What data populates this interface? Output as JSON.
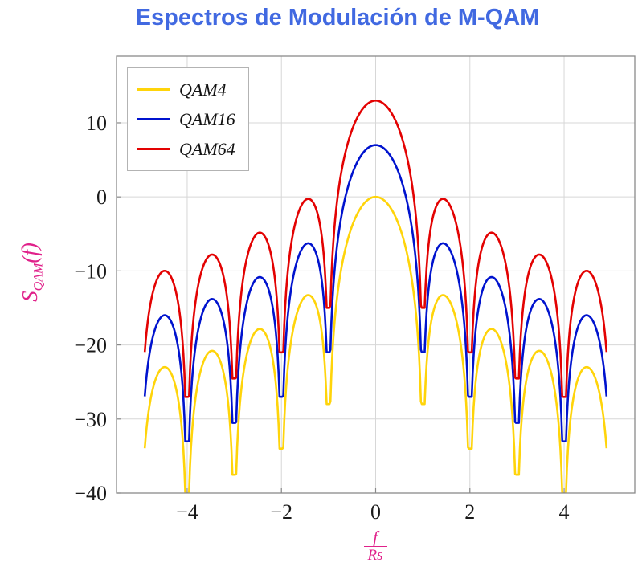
{
  "title": "Espectros de Modulación de M-QAM",
  "labels": {
    "y_main": "S",
    "y_sub": "QAM",
    "y_args": "(f)",
    "x_num": "f",
    "x_den": "Rs"
  },
  "colors": {
    "title": "#4169E1",
    "axis_label": "#E0218A",
    "grid": "#d7d7d7",
    "axis": "#8a8a8a",
    "tick_label": "#1a1a1a"
  },
  "chart_data": {
    "type": "line",
    "title": "Espectros de Modulación de M-QAM",
    "xlabel": "f/Rs",
    "ylabel": "S_QAM(f)",
    "xlim": [
      -5.5,
      5.5
    ],
    "ylim": [
      -40,
      19
    ],
    "x_range": [
      -4.9,
      4.9
    ],
    "x_ticks": [
      {
        "v": -4,
        "label": "−4"
      },
      {
        "v": -2,
        "label": "−2"
      },
      {
        "v": 0,
        "label": "0"
      },
      {
        "v": 2,
        "label": "2"
      },
      {
        "v": 4,
        "label": "4"
      }
    ],
    "y_ticks": [
      {
        "v": -40,
        "label": "−40"
      },
      {
        "v": -30,
        "label": "−30"
      },
      {
        "v": -20,
        "label": "−20"
      },
      {
        "v": -10,
        "label": "−10"
      },
      {
        "v": 0,
        "label": "0"
      },
      {
        "v": 10,
        "label": "10"
      }
    ],
    "formula": "S(f) = peak_db + 20*log10(|sin(pi*f)/(pi*f)|), nulls at integer f clipped by sampling",
    "null_floor_delta": 0.04,
    "grid": "major",
    "legend_position": "top-left",
    "series": [
      {
        "name": "QAM4",
        "color": "#FFD40A",
        "peak_db": 0,
        "key_points": {
          "peak": 0,
          "first_sidelobe": -13.3,
          "edge_value_at_4.9": -33.9
        }
      },
      {
        "name": "QAM16",
        "color": "#0013CE",
        "peak_db": 7,
        "key_points": {
          "peak": 7,
          "first_sidelobe": -6.3,
          "edge_value_at_4.9": -26.9
        }
      },
      {
        "name": "QAM64",
        "color": "#E30202",
        "peak_db": 13,
        "key_points": {
          "peak": 13,
          "first_sidelobe": -0.3,
          "edge_value_at_4.9": -20.9
        }
      }
    ]
  }
}
